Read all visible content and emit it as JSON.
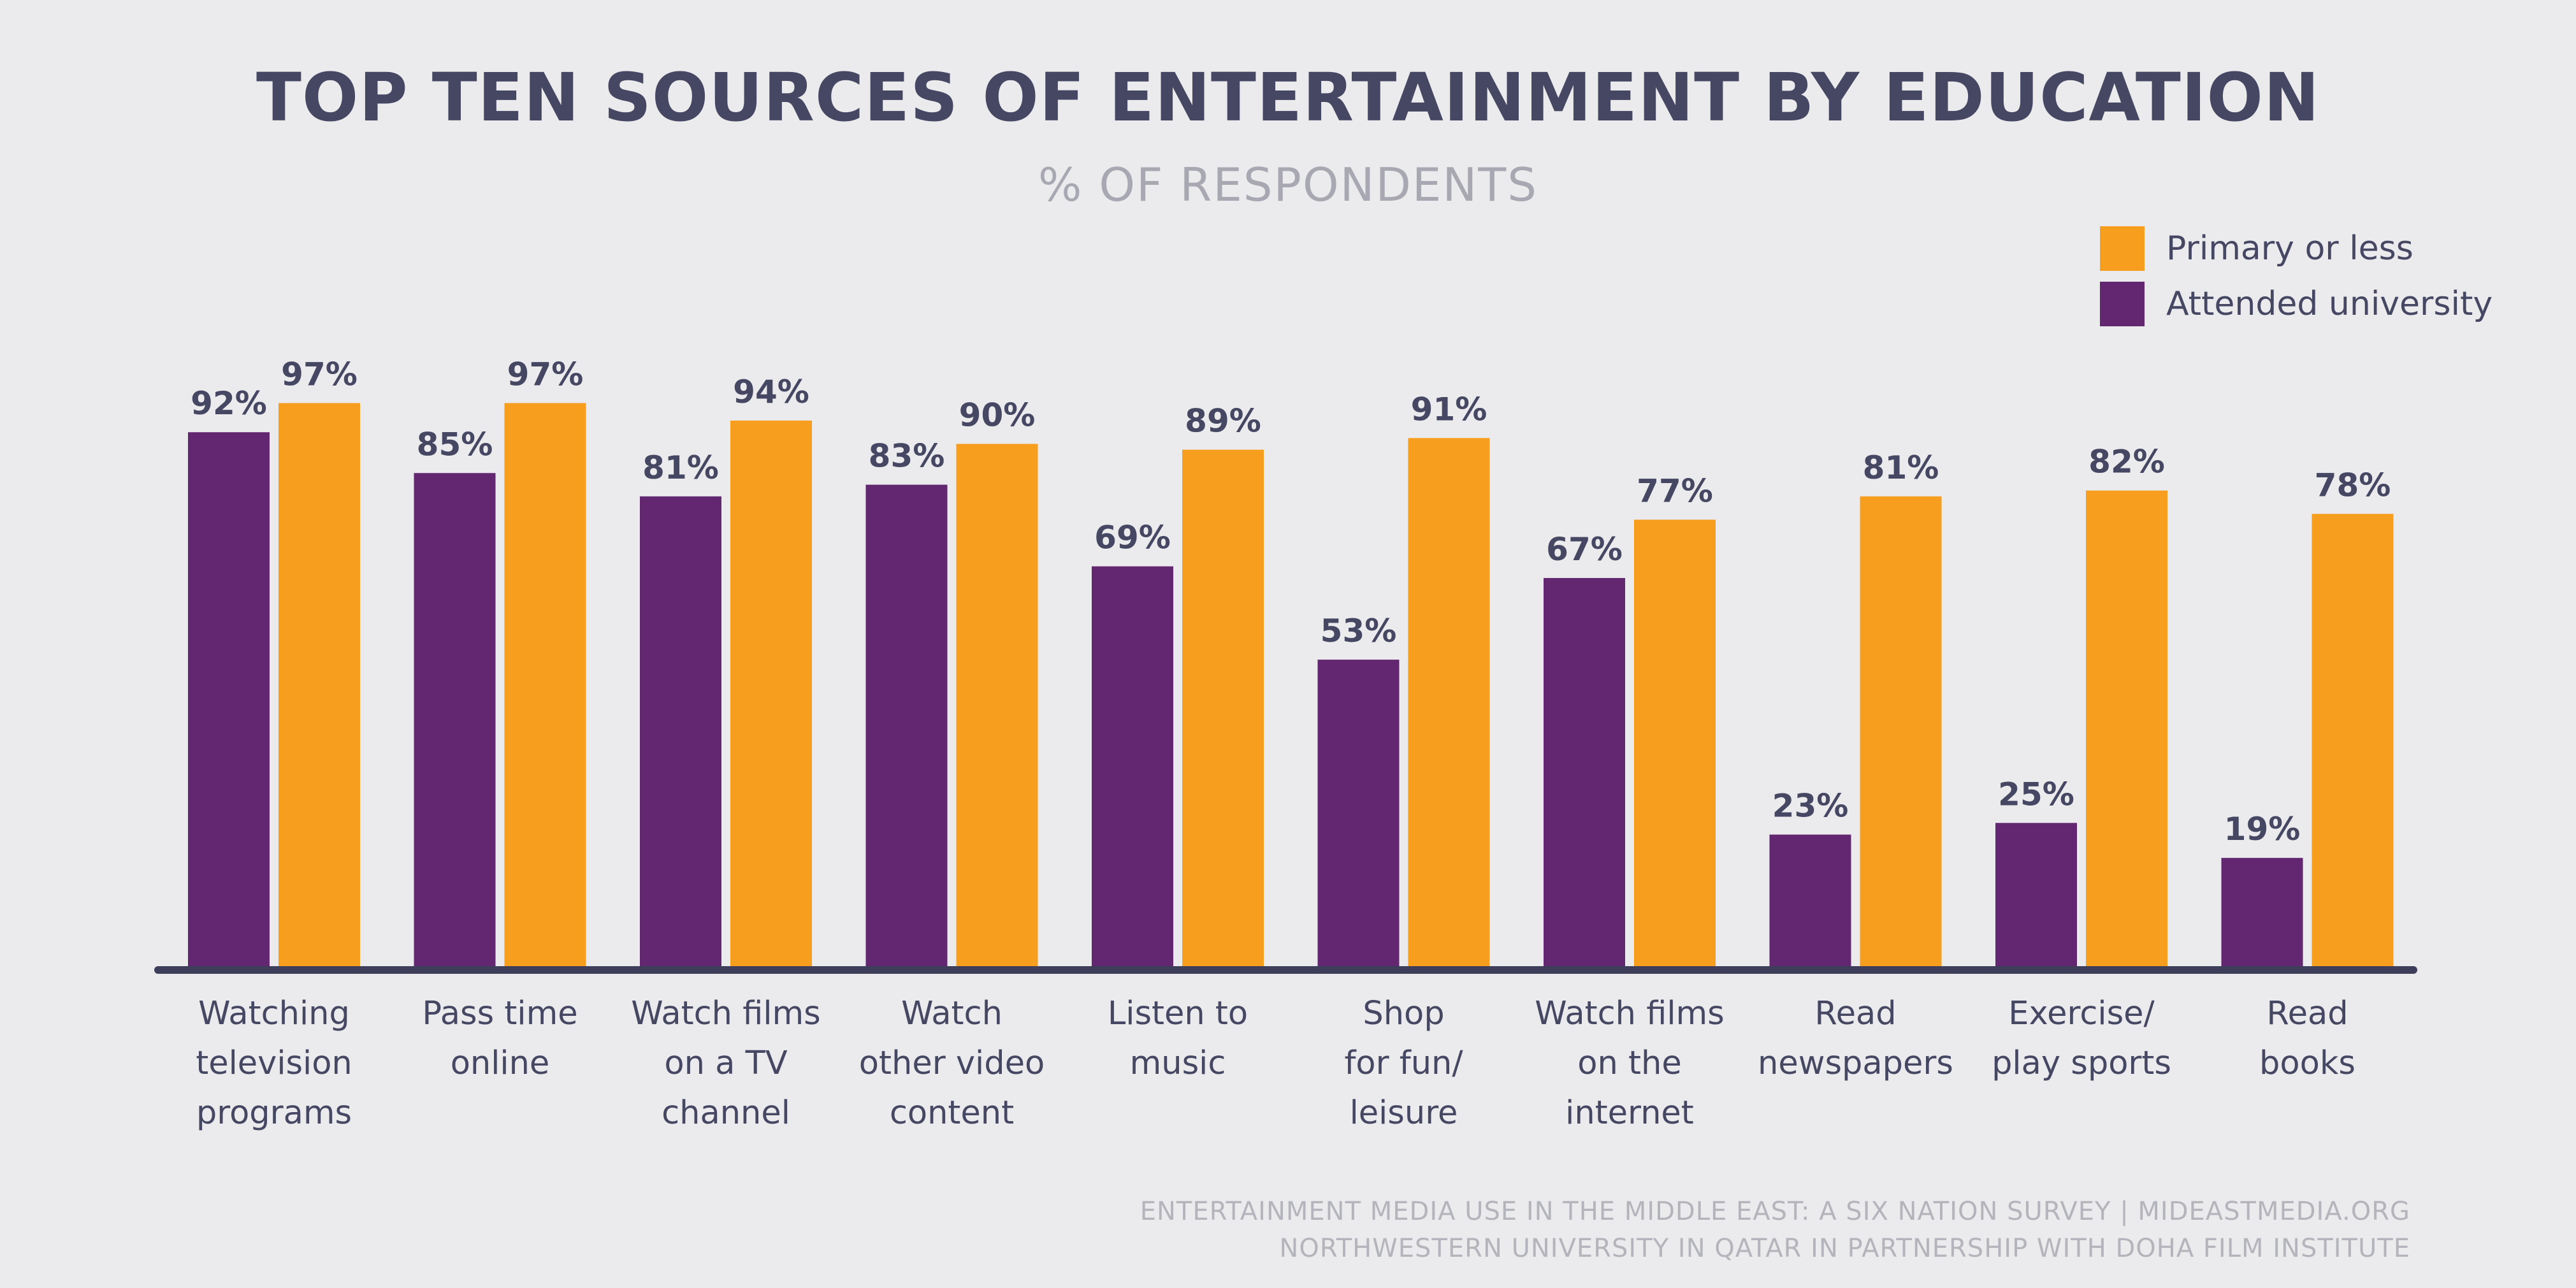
{
  "chart_data": {
    "type": "bar",
    "title": "TOP TEN SOURCES OF ENTERTAINMENT BY EDUCATION",
    "subtitle": "% OF RESPONDENTS",
    "categories": [
      [
        "Watching",
        "television",
        "programs"
      ],
      [
        "Pass time",
        "online"
      ],
      [
        "Watch films",
        "on a TV",
        "channel"
      ],
      [
        "Watch",
        "other video",
        "content"
      ],
      [
        "Listen to",
        "music"
      ],
      [
        "Shop",
        "for fun/",
        "leisure"
      ],
      [
        "Watch films",
        "on the",
        "internet"
      ],
      [
        "Read",
        "newspapers"
      ],
      [
        "Exercise/",
        "play sports"
      ],
      [
        "Read",
        "books"
      ]
    ],
    "series": [
      {
        "name": "Attended university",
        "color": "#632772",
        "values": [
          92,
          85,
          81,
          83,
          69,
          53,
          67,
          23,
          25,
          19
        ],
        "labels": [
          "92%",
          "85%",
          "81%",
          "83%",
          "69%",
          "53%",
          "67%",
          "23%",
          "25%",
          "19%"
        ]
      },
      {
        "name": "Primary or less",
        "color": "#f79e1e",
        "values": [
          97,
          97,
          94,
          90,
          89,
          91,
          77,
          81,
          82,
          78
        ],
        "labels": [
          "97%",
          "97%",
          "94%",
          "90%",
          "89%",
          "91%",
          "77%",
          "81%",
          "82%",
          "78%"
        ]
      }
    ],
    "ylim": [
      0,
      100
    ],
    "grid": false,
    "legend_position": "top-right",
    "axis_color": "#3d3f5a",
    "label_color": "#454763"
  },
  "source_lines": [
    "ENTERTAINMENT MEDIA USE IN THE MIDDLE EAST: A SIX NATION SURVEY | MIDEASTMEDIA.ORG",
    "NORTHWESTERN UNIVERSITY IN QATAR IN PARTNERSHIP WITH DOHA FILM INSTITUTE"
  ]
}
